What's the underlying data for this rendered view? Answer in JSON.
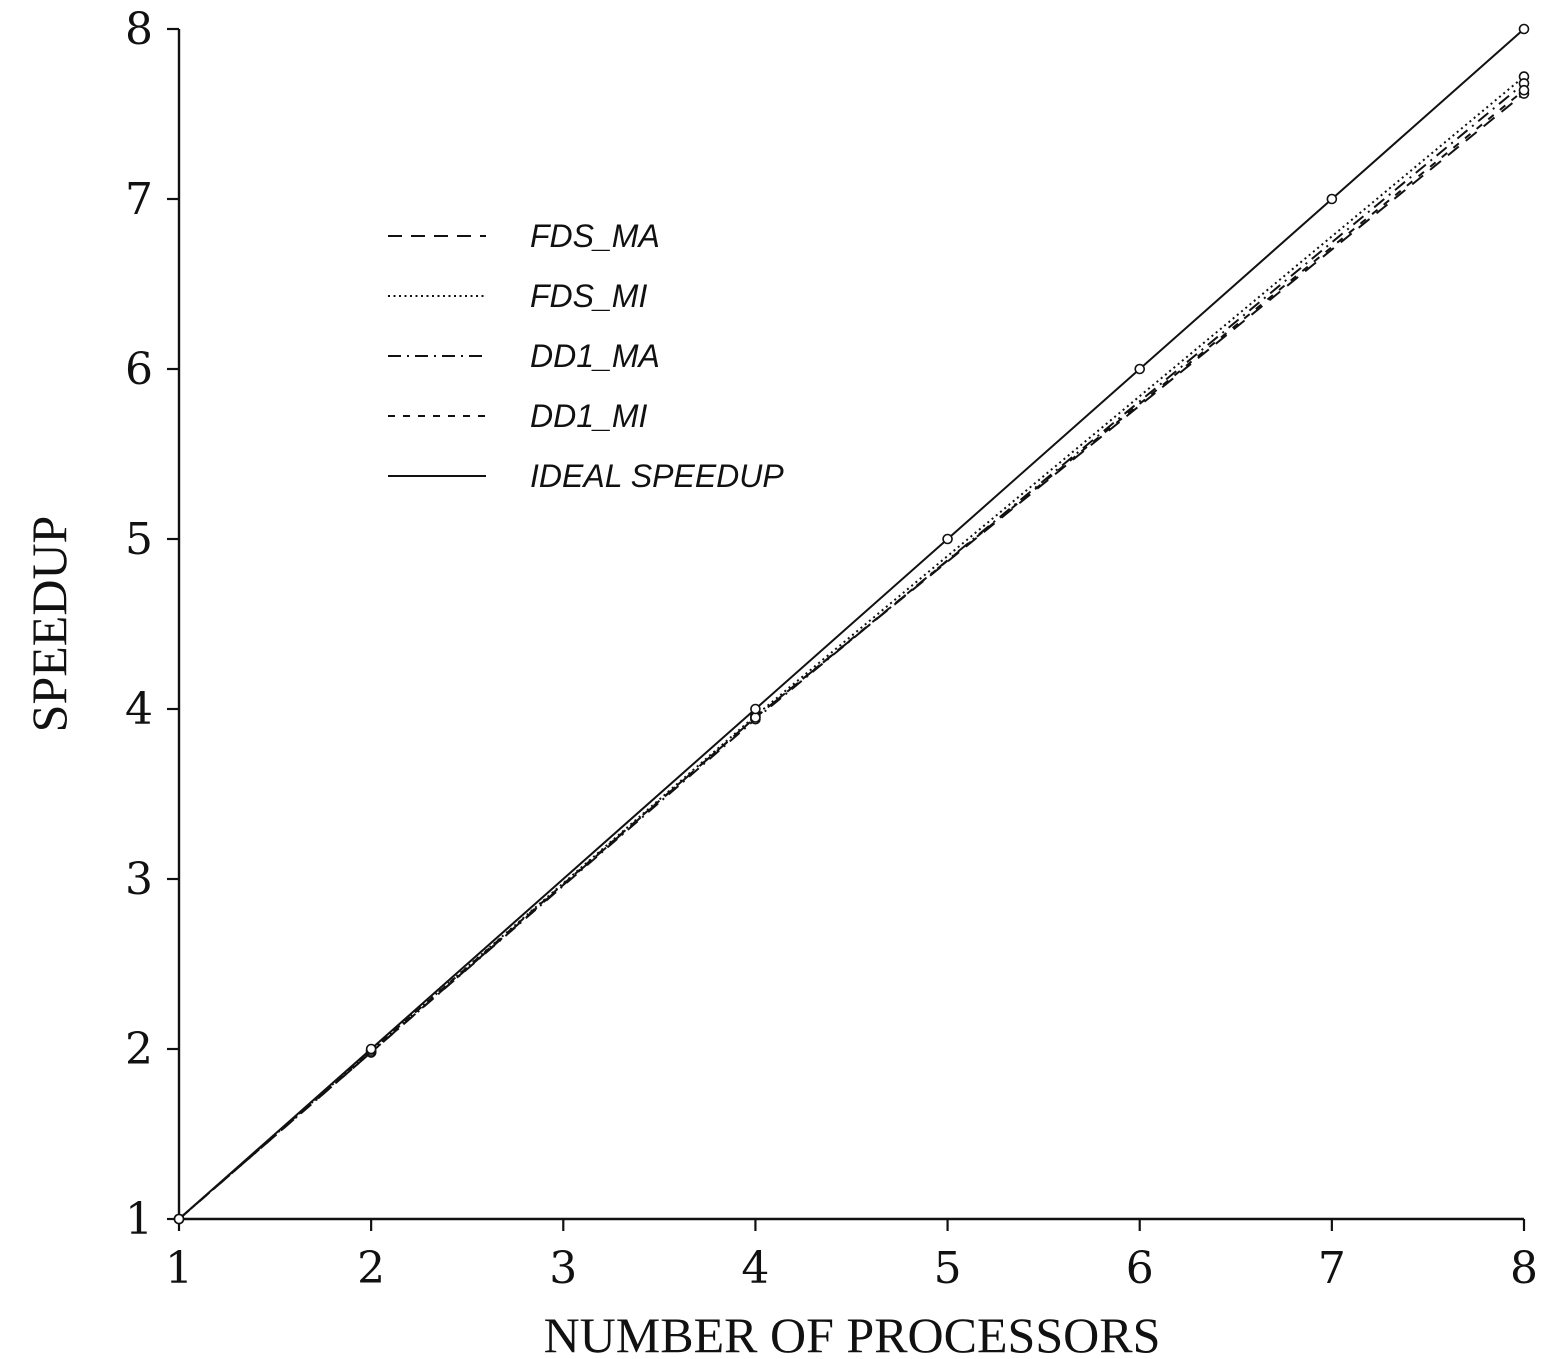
{
  "chart_data": {
    "type": "line",
    "title": "",
    "xlabel": "NUMBER OF PROCESSORS",
    "ylabel": "SPEEDUP",
    "xlim": [
      1,
      8
    ],
    "ylim": [
      1,
      8
    ],
    "x_ticks": [
      "1",
      "2",
      "3",
      "4",
      "5",
      "6",
      "7",
      "8"
    ],
    "y_ticks": [
      "1",
      "2",
      "3",
      "4",
      "5",
      "6",
      "7",
      "8"
    ],
    "grid": false,
    "legend_position": "upper-left",
    "series": [
      {
        "name": "FDS_MA",
        "style": "long-dash",
        "points": [
          [
            1,
            1
          ],
          [
            2,
            1.98
          ],
          [
            4,
            3.95
          ],
          [
            8,
            7.62
          ]
        ]
      },
      {
        "name": "FDS_MI",
        "style": "dotted",
        "points": [
          [
            1,
            1
          ],
          [
            2,
            1.99
          ],
          [
            4,
            3.96
          ],
          [
            8,
            7.72
          ]
        ]
      },
      {
        "name": "DD1_MA",
        "style": "dash-dot",
        "points": [
          [
            1,
            1
          ],
          [
            2,
            1.98
          ],
          [
            4,
            3.94
          ],
          [
            8,
            7.68
          ]
        ]
      },
      {
        "name": "DD1_MI",
        "style": "short-dash",
        "points": [
          [
            1,
            1
          ],
          [
            2,
            1.99
          ],
          [
            4,
            3.95
          ],
          [
            8,
            7.64
          ]
        ]
      },
      {
        "name": "IDEAL SPEEDUP",
        "style": "solid",
        "points": [
          [
            1,
            1
          ],
          [
            2,
            2
          ],
          [
            4,
            4
          ],
          [
            5,
            5
          ],
          [
            6,
            6
          ],
          [
            7,
            7
          ],
          [
            8,
            8
          ]
        ]
      }
    ]
  }
}
